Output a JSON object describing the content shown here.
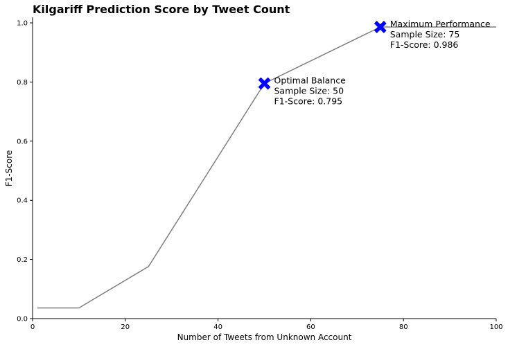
{
  "chart_data": {
    "type": "line",
    "title": "Kilgariff Prediction Score by Tweet Count",
    "xlabel": "Number of Tweets from Unknown Account",
    "ylabel": "F1-Score",
    "xlim": [
      0,
      100
    ],
    "ylim": [
      0.0,
      1.0
    ],
    "x_ticks": [
      0,
      20,
      40,
      60,
      80,
      100
    ],
    "y_ticks": [
      0.0,
      0.2,
      0.4,
      0.6,
      0.8,
      1.0
    ],
    "x_tick_labels": [
      "0",
      "20",
      "40",
      "60",
      "80",
      "100"
    ],
    "y_tick_labels": [
      "0.0",
      "0.2",
      "0.4",
      "0.6",
      "0.8",
      "1.0"
    ],
    "grid": false,
    "line_color": "#808080",
    "marker_color": "#0000ff",
    "series": [
      {
        "x": [
          1,
          10,
          25,
          50,
          75,
          100
        ],
        "y": [
          0.036,
          0.036,
          0.176,
          0.795,
          0.986,
          0.986
        ]
      }
    ],
    "annotations": [
      {
        "x": 50,
        "y": 0.795,
        "lines": [
          "Optimal Balance",
          "Sample Size:  50",
          "F1-Score:  0.795"
        ]
      },
      {
        "x": 75,
        "y": 0.986,
        "lines": [
          "Maximum Performance",
          "Sample Size:  75",
          "F1-Score:  0.986"
        ]
      }
    ]
  }
}
